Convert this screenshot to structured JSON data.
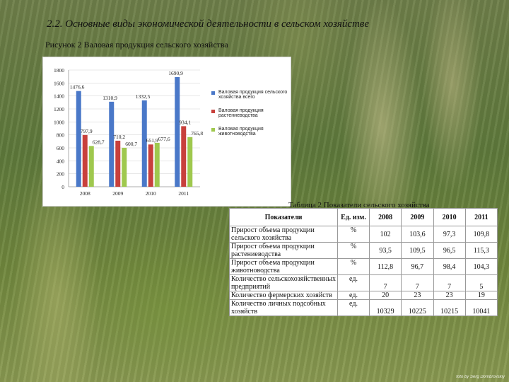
{
  "heading": "2.2. Основные виды экономической деятельности в сельском хозяйстве",
  "figure_caption": "Рисунок 2 Валовая продукция сельского хозяйства",
  "chart_data": {
    "type": "bar",
    "categories": [
      "2008",
      "2009",
      "2010",
      "2011"
    ],
    "series": [
      {
        "name": "Валовая продукция сельского хозяйства всего",
        "color": "#4a78c8",
        "values": [
          1476.6,
          1310.9,
          1332.5,
          1690.9
        ],
        "labels": [
          "1476,6",
          "1310,9",
          "1332,5",
          "1690,9"
        ]
      },
      {
        "name": "Валовая продукция растениеводства",
        "color": "#c8403c",
        "values": [
          797.9,
          710.2,
          651.9,
          934.1
        ],
        "labels": [
          "797,9",
          "710,2",
          "651,9",
          "934,1"
        ]
      },
      {
        "name": "Валовая продукция животноводства",
        "color": "#9fc84e",
        "values": [
          628.7,
          600.7,
          677.6,
          765.8
        ],
        "labels": [
          "628,7",
          "600,7",
          "677,6",
          "765,8"
        ]
      }
    ],
    "ylim": [
      0,
      1800
    ],
    "yticks": [
      "0",
      "200",
      "400",
      "600",
      "800",
      "1000",
      "1200",
      "1400",
      "1600",
      "1800"
    ],
    "legend_position": "right"
  },
  "table_caption": "Таблица 2 Показатели сельского хозяйства",
  "table": {
    "headers": [
      "Показатели",
      "Ед. изм.",
      "2008",
      "2009",
      "2010",
      "2011"
    ],
    "rows": [
      [
        "Прирост объема продукции сельского хозяйства",
        "%",
        "102",
        "103,6",
        "97,3",
        "109,8"
      ],
      [
        "Прирост объема продукции растениеводства",
        "%",
        "93,5",
        "109,5",
        "96,5",
        "115,3"
      ],
      [
        "Прирост объема продукции животноводства",
        "%",
        "112,8",
        "96,7",
        "98,4",
        "104,3"
      ],
      [
        "Количество сельскохозяйственных предприятий",
        "ед.",
        "7",
        "7",
        "7",
        "5"
      ],
      [
        "Количество фермерских хозяйств",
        "ед.",
        "20",
        "23",
        "23",
        "19"
      ],
      [
        "Количество личных подсобных хозяйств",
        "ед.",
        "10329",
        "10225",
        "10215",
        "10041"
      ]
    ]
  },
  "photo_credit": "foto by Serg Dombrovskiy"
}
